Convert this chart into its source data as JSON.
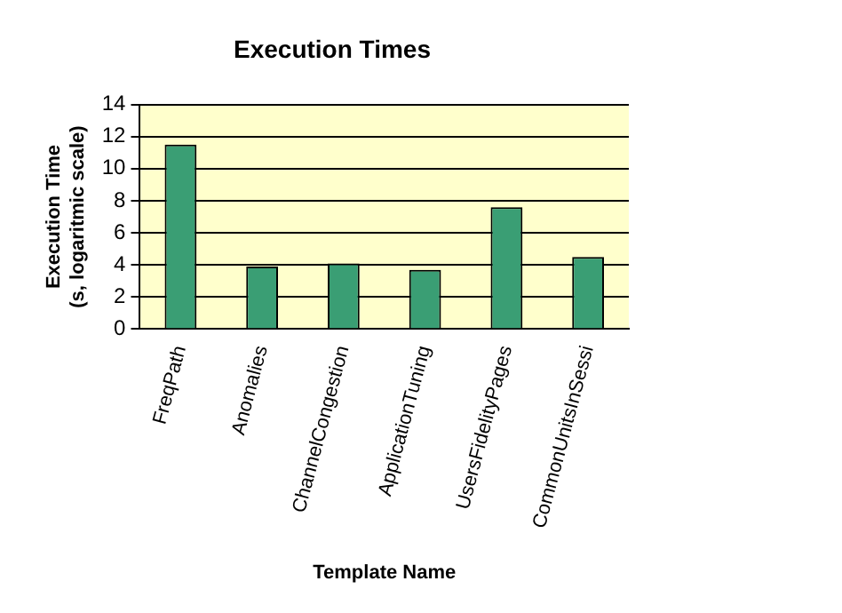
{
  "chart_data": {
    "type": "bar",
    "title": "Execution Times",
    "xlabel": "Template Name",
    "ylabel": "Execution Time\n(s, logaritmic scale)",
    "categories": [
      "FreqPath",
      "Anomalies",
      "ChannelCongestion",
      "ApplicationTuning",
      "UsersFidelityPages",
      "CommonUnitsInSessi"
    ],
    "values": [
      11.5,
      3.9,
      4.1,
      3.7,
      7.6,
      4.5
    ],
    "color": "#3a9e74",
    "ylim": [
      0,
      14
    ],
    "yticks": [
      0,
      2,
      4,
      6,
      8,
      10,
      12,
      14
    ],
    "grid": "y",
    "legend": false
  }
}
